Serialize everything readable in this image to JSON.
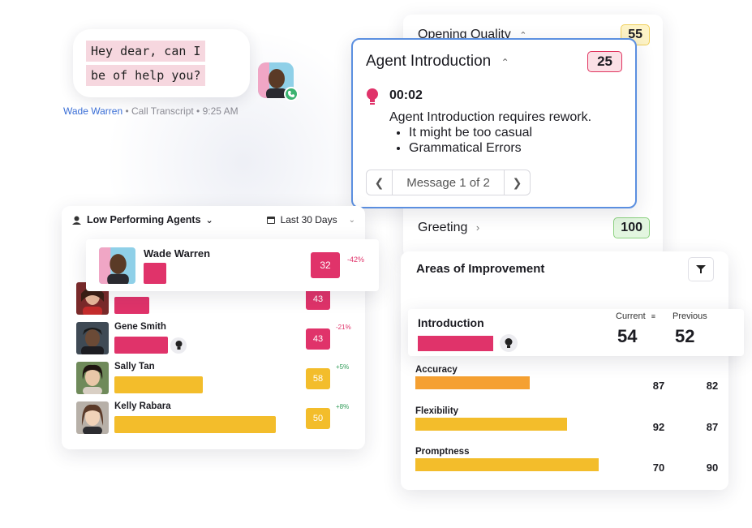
{
  "chat": {
    "lines": [
      "Hey dear, can I",
      "be of help you?"
    ],
    "caller_name": "Wade Warren",
    "meta": "• Call Transcript • 9:25 AM"
  },
  "scores": {
    "opening_quality": {
      "label": "Opening Quality",
      "value": "55"
    },
    "greeting": {
      "label": "Greeting",
      "value": "100"
    }
  },
  "intro_card": {
    "title": "Agent Introduction",
    "score": "25",
    "time": "00:02",
    "summary": "Agent Introduction requires rework.",
    "bullets": [
      "It might be too casual",
      "Grammatical Errors"
    ],
    "pager": "Message 1 of 2"
  },
  "low_performing": {
    "title": "Low Performing Agents",
    "range": "Last 30 Days",
    "highlight": {
      "name": "Wade Warren",
      "score": "32",
      "delta": "-42%",
      "bar_fraction": 0.12
    },
    "agents": [
      {
        "name": "",
        "score": "43",
        "delta": "",
        "bar_fraction": 0.21,
        "color": "#e0336a",
        "show_bulb": false
      },
      {
        "name": "Gene Smith",
        "score": "43",
        "delta": "-21%",
        "bar_fraction": 0.32,
        "color": "#e0336a",
        "show_bulb": true
      },
      {
        "name": "Sally Tan",
        "score": "58",
        "delta": "+5%",
        "bar_fraction": 0.53,
        "color": "#f3bd2b",
        "show_bulb": false
      },
      {
        "name": "Kelly Rabara",
        "score": "50",
        "delta": "+8%",
        "bar_fraction": 0.97,
        "color": "#f3bd2b",
        "show_bulb": false
      }
    ]
  },
  "areas": {
    "title": "Areas of Improvement",
    "current_label": "Current",
    "previous_label": "Previous",
    "highlight": {
      "label": "Introduction",
      "current": "54",
      "previous": "52",
      "bar_fraction": 0.41
    },
    "metrics": [
      {
        "label": "Accuracy",
        "current": "87",
        "previous": "82",
        "bar_fraction": 0.62,
        "color": "#f5a031"
      },
      {
        "label": "Flexibility",
        "current": "92",
        "previous": "87",
        "bar_fraction": 0.82,
        "color": "#f3bd2b"
      },
      {
        "label": "Promptness",
        "current": "70",
        "previous": "90",
        "bar_fraction": 0.99,
        "color": "#f3bd2b"
      }
    ]
  },
  "colors": {
    "accent_pink": "#e0336a",
    "accent_yellow": "#f3bd2b",
    "accent_orange": "#f5a031",
    "link_blue": "#3b6fd6",
    "card_border_blue": "#5b8fe0"
  }
}
